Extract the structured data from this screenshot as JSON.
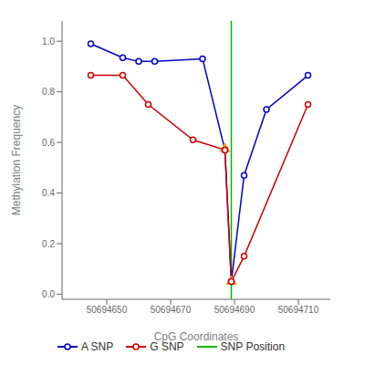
{
  "chart_data": {
    "type": "line",
    "xlabel": "CpG Coordinates",
    "ylabel": "Methylation Frequency",
    "series": [
      {
        "name": "A SNP",
        "color": "#0000cc",
        "marker": "circle",
        "x": [
          50694645,
          50694655,
          50694660,
          50694665,
          50694680,
          50694687,
          50694689,
          50694693,
          50694700,
          50694713
        ],
        "values": [
          0.99,
          0.935,
          0.92,
          0.92,
          0.93,
          0.57,
          0.05,
          0.47,
          0.73,
          0.865
        ]
      },
      {
        "name": "G SNP",
        "color": "#cc0000",
        "marker": "circle",
        "x": [
          50694645,
          50694655,
          50694663,
          50694677,
          50694687,
          50694689,
          50694693,
          50694713
        ],
        "values": [
          0.865,
          0.865,
          0.75,
          0.61,
          0.57,
          0.05,
          0.15,
          0.75
        ]
      },
      {
        "name": "SNP Position",
        "type": "vline",
        "color": "#00bb00",
        "x": [
          50694689
        ]
      },
      {
        "type": "scatter",
        "marker": "triangle",
        "color": "#FFA500",
        "x": [
          50694687,
          50694689
        ],
        "values": [
          0.575,
          0.05
        ]
      }
    ],
    "xlim": [
      50694636,
      50694720
    ],
    "ylim": [
      -0.02,
      1.08
    ],
    "xticks": [
      50694650,
      50694670,
      50694690,
      50694710
    ],
    "yticks": [
      {
        "value": 0.0,
        "label": "0.0"
      },
      {
        "value": 0.2,
        "label": "0.2"
      },
      {
        "value": 0.4,
        "label": "0.4"
      },
      {
        "value": 0.6,
        "label": "0.6"
      },
      {
        "value": 0.8,
        "label": "0.8"
      },
      {
        "value": 1.0,
        "label": "1.0"
      }
    ],
    "grid": false,
    "legend": "bottom"
  }
}
